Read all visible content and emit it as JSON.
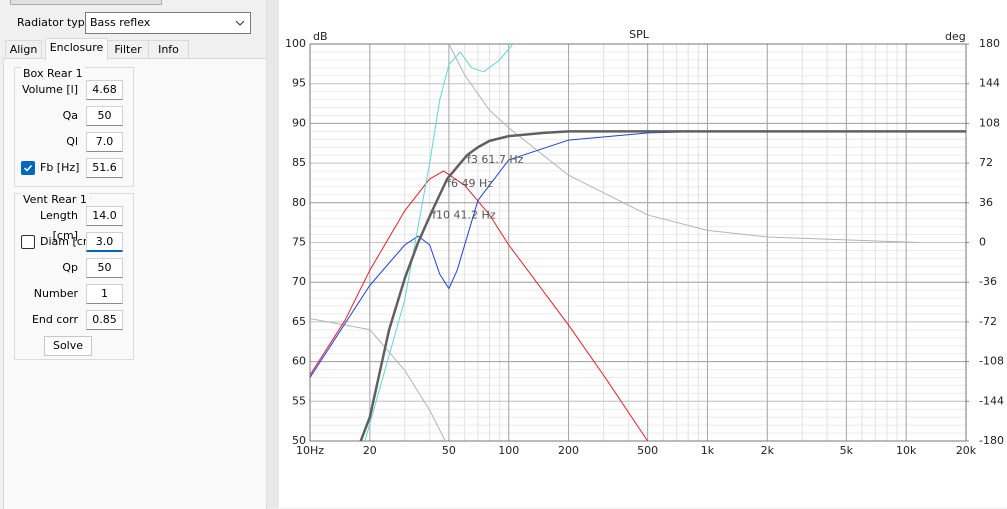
{
  "panel": {
    "radiator_type_label": "Radiator type",
    "radiator_type": "Bass reflex",
    "tabs": [
      "Align",
      "Enclosure",
      "Filter",
      "Info"
    ],
    "active_tab": 1,
    "box": {
      "title": "Box Rear 1",
      "fields": [
        {
          "label": "Volume [l]",
          "value": "4.68"
        },
        {
          "label": "Qa",
          "value": "50"
        },
        {
          "label": "Ql",
          "value": "7.0"
        },
        {
          "label": "Fb [Hz]",
          "value": "51.6",
          "checkbox": true,
          "checked": true
        }
      ]
    },
    "vent": {
      "title": "Vent Rear 1",
      "fields": [
        {
          "label": "Length [cm]",
          "value": "14.0"
        },
        {
          "label": "Diam [cm]",
          "value": "3.0",
          "checkbox": true,
          "checked": false
        },
        {
          "label": "Qp",
          "value": "50"
        },
        {
          "label": "Number",
          "value": "1"
        },
        {
          "label": "End corr",
          "value": "0.85"
        }
      ]
    },
    "solve": "Solve"
  },
  "chart_data": {
    "type": "line",
    "title": "SPL",
    "ylabel": "dB",
    "y2label": "deg",
    "xscale": "log",
    "xlim": [
      10,
      20000
    ],
    "ylim": [
      50,
      100
    ],
    "y2lim": [
      -180,
      180
    ],
    "xticks": [
      {
        "value": 10,
        "label": "10Hz"
      },
      20,
      50,
      100,
      200,
      500,
      {
        "value": 1000,
        "label": "1k"
      },
      {
        "value": 2000,
        "label": "2k"
      },
      {
        "value": 5000,
        "label": "5k"
      },
      {
        "value": 10000,
        "label": "10k"
      },
      {
        "value": 20000,
        "label": "20k"
      }
    ],
    "yticks": [
      50,
      55,
      60,
      65,
      70,
      75,
      80,
      85,
      90,
      95,
      100
    ],
    "y2ticks": [
      -180,
      -144,
      -108,
      -72,
      -36,
      0,
      36,
      72,
      108,
      144,
      180
    ],
    "grid": true,
    "series": [
      {
        "color": "#b4b4b4",
        "axis": "y2",
        "width": 1,
        "x": [
          50,
          60,
          80,
          100,
          200,
          500,
          1000,
          2000,
          10000,
          11600
        ],
        "values": [
          180,
          152,
          120,
          104,
          61,
          25,
          11,
          5,
          0.4,
          0
        ]
      },
      {
        "color": "#b4b4b4",
        "axis": "y2",
        "width": 1,
        "x": [
          10,
          20,
          30,
          40,
          48
        ],
        "values": [
          -69,
          -79,
          -116,
          -152,
          -180
        ]
      },
      {
        "color": "#e0202a",
        "width": 1,
        "x": [
          10,
          15,
          20,
          30,
          40,
          47,
          60,
          80,
          100,
          200,
          300,
          500
        ],
        "values": [
          58.3,
          65.2,
          71.5,
          79,
          83,
          84,
          82.2,
          78.5,
          74.7,
          64.6,
          58.3,
          50
        ]
      },
      {
        "color": "#1f3fe0",
        "width": 1,
        "x": [
          10,
          20,
          30,
          35,
          40,
          45,
          50,
          55,
          70,
          100,
          200,
          500,
          1000,
          20000
        ],
        "values": [
          58,
          69.6,
          74.7,
          75.8,
          74.7,
          71,
          69.2,
          71.5,
          80.3,
          85.4,
          87.9,
          88.8,
          89,
          89
        ]
      },
      {
        "color": "#5fd8d0",
        "width": 1,
        "x": [
          18.9,
          30,
          40,
          45,
          50,
          57,
          65,
          75,
          90,
          105
        ],
        "values": [
          50,
          67.8,
          85,
          93,
          97.4,
          99,
          97,
          96.5,
          98,
          100
        ]
      },
      {
        "color": "#606060",
        "width": 2.5,
        "x": [
          18,
          20,
          25,
          30,
          35,
          41.2,
          49,
          61.7,
          70,
          80,
          100,
          150,
          200,
          500,
          1000,
          20000
        ],
        "values": [
          50,
          53,
          64,
          70.5,
          75,
          79,
          83,
          86,
          87,
          87.8,
          88.4,
          88.8,
          89,
          89,
          89,
          89
        ]
      }
    ],
    "annotations": [
      {
        "text": "f3 61.7 Hz",
        "x": 61.7,
        "y": 86
      },
      {
        "text": "f6 49 Hz",
        "x": 49,
        "y": 83
      },
      {
        "text": "f10 41.2 Hz",
        "x": 41.2,
        "y": 79
      }
    ]
  }
}
